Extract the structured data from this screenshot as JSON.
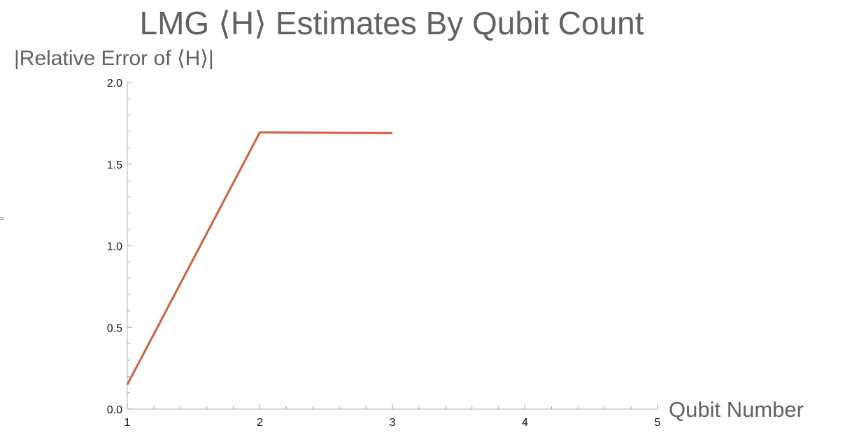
{
  "chart_data": {
    "type": "line",
    "title": "LMG ⟨H⟩ Estimates By Qubit Count",
    "xlabel": "Qubit Number",
    "ylabel": "|Relative Error of ⟨H⟩|",
    "xlim": [
      1,
      5
    ],
    "ylim": [
      0,
      2
    ],
    "x_ticks": [
      "1",
      "2",
      "3",
      "4",
      "5"
    ],
    "y_ticks": [
      "0.0",
      "0.5",
      "1.0",
      "1.5",
      "2.0"
    ],
    "grid": false,
    "legend": "none",
    "series": [
      {
        "color": "#d0603f",
        "x": [
          1,
          2,
          3
        ],
        "y": [
          0.15,
          1.695,
          1.69
        ]
      }
    ]
  }
}
